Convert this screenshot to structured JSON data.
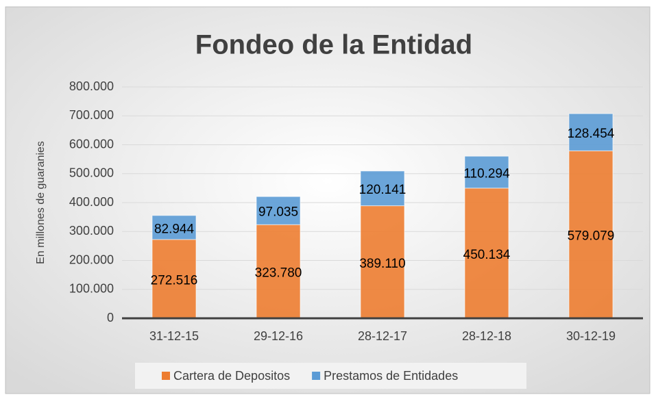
{
  "chart_data": {
    "type": "stacked_bar",
    "title": "Fondeo de la Entidad",
    "y_label": "En millones de guaranies",
    "categories": [
      "31-12-15",
      "29-12-16",
      "28-12-17",
      "28-12-18",
      "30-12-19"
    ],
    "series": [
      {
        "name": "Cartera de Depositos",
        "color": "#ed7d31",
        "values": [
          272516,
          323780,
          389110,
          450134,
          579079
        ],
        "value_labels": [
          "272.516",
          "323.780",
          "389.110",
          "450.134",
          "579.079"
        ]
      },
      {
        "name": "Prestamos de Entidades",
        "color": "#5b9bd5",
        "values": [
          82944,
          97035,
          120141,
          110294,
          128454
        ],
        "value_labels": [
          "82.944",
          "97.035",
          "120.141",
          "110.294",
          "128.454"
        ]
      }
    ],
    "ylim": [
      0,
      800000
    ],
    "yticks": [
      0,
      {
        "value": 100000,
        "label": "100.000"
      },
      {
        "value": 200000,
        "label": "200.000"
      },
      {
        "value": 300000,
        "label": "300.000"
      },
      {
        "value": 400000,
        "label": "400.000"
      },
      {
        "value": 500000,
        "label": "500.000"
      },
      {
        "value": 600000,
        "label": "600.000"
      },
      {
        "value": 700000,
        "label": "700.000"
      },
      {
        "value": 800000,
        "label": "800.000"
      }
    ],
    "grid": true,
    "legend": "bottom"
  }
}
